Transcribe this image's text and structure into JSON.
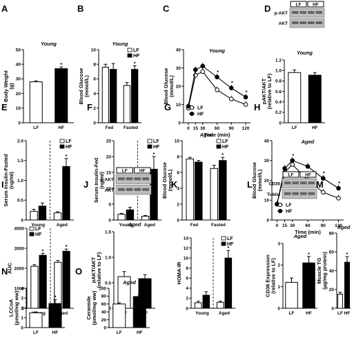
{
  "chart_data": [
    {
      "letter": "A",
      "type": "bar",
      "title": "Young",
      "ylabel": "Body Weight\n(g)",
      "ylim": [
        0,
        50
      ],
      "yticks": [
        0,
        10,
        20,
        30,
        40,
        50
      ],
      "categories": [
        "LF",
        "HF"
      ],
      "values": [
        28,
        37
      ],
      "errors": [
        0.6,
        1.2
      ],
      "sig": [
        false,
        true
      ],
      "colors": [
        "#ffffff",
        "#000000"
      ]
    },
    {
      "letter": "B",
      "type": "bar",
      "title": "Young",
      "ylabel": "Blood Glucose\n(mmol/L)",
      "ylim": [
        0,
        10
      ],
      "yticks": [
        0,
        2,
        4,
        6,
        8,
        10
      ],
      "categories": [
        "Fed",
        "Fasted"
      ],
      "series": [
        {
          "name": "LF",
          "values": [
            7.6,
            5.1
          ],
          "errors": [
            0.4,
            0.4
          ]
        },
        {
          "name": "HF",
          "values": [
            7.3,
            7.3
          ],
          "errors": [
            0.8,
            0.5
          ]
        }
      ],
      "sig": [
        false,
        true
      ],
      "legend": "top-right"
    },
    {
      "letter": "C",
      "type": "line",
      "title": "Young",
      "ylabel": "Blood Glucose\n(mmol/L)",
      "xlabel": "Time (min)",
      "ylim": [
        0,
        40
      ],
      "yticks": [
        0,
        10,
        20,
        30,
        40
      ],
      "x": [
        0,
        15,
        30,
        60,
        90,
        120
      ],
      "series": [
        {
          "name": "LF",
          "values": [
            8,
            26,
            28,
            18,
            13,
            10
          ],
          "marker": "open"
        },
        {
          "name": "HF",
          "values": [
            9,
            29,
            31,
            25,
            19,
            14
          ],
          "marker": "filled"
        }
      ],
      "sig_x": [
        60,
        90,
        120
      ],
      "legend": "bottom-left"
    },
    {
      "letter": "D",
      "type": "bar",
      "title": "Young",
      "ylabel": "pAKT/AKT\n(relative to LF)",
      "ylim": [
        0,
        1.2
      ],
      "yticks": [
        0,
        0.2,
        0.4,
        0.6,
        0.8,
        1.0,
        1.2
      ],
      "ytick_labels": [
        "0",
        "0.2",
        "0.4",
        "0.6",
        "0.8",
        "1.0",
        "1.2"
      ],
      "categories": [
        "LF",
        "HF"
      ],
      "values": [
        0.96,
        0.91
      ],
      "errors": [
        0.05,
        0.05
      ],
      "colors": [
        "#ffffff",
        "#000000"
      ],
      "blot_rows": [
        "p-AKT",
        "AKT"
      ],
      "blot_cols": [
        "LF",
        "HF"
      ]
    },
    {
      "letter": "E",
      "type": "bar",
      "ylabel": "Serum Insulin-Fasted\n(ng/ml)",
      "ylim": [
        0,
        2.0
      ],
      "yticks": [
        0,
        0.5,
        1.0,
        1.5,
        2.0
      ],
      "ytick_labels": [
        "0",
        "0.5",
        "1.0",
        "1.5",
        "2.0"
      ],
      "categories": [
        "Young",
        "Aged"
      ],
      "series": [
        {
          "name": "LF",
          "values": [
            0.22,
            0.18
          ],
          "errors": [
            0.05,
            0.03
          ]
        },
        {
          "name": "HF",
          "values": [
            0.35,
            1.35
          ],
          "errors": [
            0.08,
            0.2
          ]
        }
      ],
      "sig": [
        false,
        true
      ],
      "legend": "top-right"
    },
    {
      "letter": "F",
      "type": "bar",
      "ylabel": "Serum Insulin-Fed\n(ng/ml)",
      "ylim": [
        0,
        25
      ],
      "yticks": [
        0,
        5,
        10,
        15,
        20,
        25
      ],
      "categories": [
        "Young",
        "Aged"
      ],
      "series": [
        {
          "name": "LF",
          "values": [
            1.8,
            1.2
          ],
          "errors": [
            0.3,
            0.2
          ]
        },
        {
          "name": "HF",
          "values": [
            3.2,
            16
          ],
          "errors": [
            0.8,
            4
          ]
        }
      ],
      "sig": [
        false,
        true
      ],
      "legend": "top-right"
    },
    {
      "letter": "G",
      "type": "bar",
      "title": "Aged",
      "ylabel": "Blood Glucose\n(mmol/L)",
      "ylim": [
        0,
        10
      ],
      "yticks": [
        0,
        2,
        4,
        6,
        8,
        10
      ],
      "categories": [
        "Fed",
        "Fasted"
      ],
      "series": [
        {
          "name": "LF",
          "values": [
            7.7,
            6.5
          ],
          "errors": [
            0.2,
            0.4
          ]
        },
        {
          "name": "HF",
          "values": [
            7.3,
            7.5
          ],
          "errors": [
            0.2,
            0.4
          ]
        }
      ],
      "sig": [
        false,
        true
      ],
      "legend": "top-right"
    },
    {
      "letter": "H",
      "type": "line",
      "title": "Aged",
      "ylabel": "Blood Glucose\n(mmol/L)",
      "xlabel": "Time (min)",
      "ylim": [
        0,
        40
      ],
      "yticks": [
        0,
        10,
        20,
        30,
        40
      ],
      "x": [
        0,
        15,
        30,
        60,
        90,
        120
      ],
      "series": [
        {
          "name": "LF",
          "values": [
            8,
            24,
            28,
            20,
            14,
            11
          ],
          "marker": "open"
        },
        {
          "name": "HF",
          "values": [
            8,
            26,
            30,
            27,
            21,
            16
          ],
          "marker": "filled"
        }
      ],
      "sig_x": [
        30,
        90,
        120
      ],
      "legend": "bottom-left"
    },
    {
      "letter": "I",
      "type": "bar",
      "ylabel": "AUC",
      "ylim": [
        0,
        4000
      ],
      "yticks": [
        0,
        1000,
        2000,
        3000,
        4000
      ],
      "categories": [
        "Young",
        "Aged"
      ],
      "series": [
        {
          "name": "LF",
          "values": [
            2100,
            2300
          ],
          "errors": [
            80,
            90
          ]
        },
        {
          "name": "HF",
          "values": [
            2650,
            2850
          ],
          "errors": [
            100,
            110
          ]
        }
      ],
      "sig": [
        true,
        true
      ],
      "legend": "top-left"
    },
    {
      "letter": "J",
      "type": "bar",
      "title": "Aged",
      "ylabel": "pAKT/AKT\n(relative to LF)",
      "ylim": [
        0,
        1.5
      ],
      "yticks": [
        0,
        0.5,
        1.0,
        1.5
      ],
      "ytick_labels": [
        "0",
        "0.5",
        "1.0",
        "1.5"
      ],
      "categories": [
        "LF",
        "HF"
      ],
      "values": [
        0.62,
        0.58
      ],
      "errors": [
        0.1,
        0.08
      ],
      "colors": [
        "#ffffff",
        "#000000"
      ],
      "blot_rows": [
        "p-AKT",
        "AKT"
      ],
      "blot_cols": [
        "LF",
        "HF"
      ]
    },
    {
      "letter": "K",
      "type": "bar",
      "ylabel": "HOMA-IR",
      "ylim": [
        0,
        14
      ],
      "yticks": [
        0,
        2,
        4,
        6,
        8,
        10,
        12,
        14
      ],
      "categories": [
        "Young",
        "Aged"
      ],
      "series": [
        {
          "name": "LF",
          "values": [
            1.1,
            1.2
          ],
          "errors": [
            0.3,
            0.2
          ]
        },
        {
          "name": "HF",
          "values": [
            2.6,
            10
          ],
          "errors": [
            0.7,
            1.5
          ]
        }
      ],
      "sig": [
        false,
        true
      ],
      "legend": "top-right"
    },
    {
      "letter": "L",
      "type": "bar",
      "title": "Aged",
      "ylabel": "CD36 Expression\n(relative to LF)",
      "ylim": [
        0,
        3
      ],
      "yticks": [
        0,
        1,
        2,
        3
      ],
      "categories": [
        "LF",
        "HF"
      ],
      "values": [
        1.2,
        2.1
      ],
      "errors": [
        0.2,
        0.3
      ],
      "sig": [
        false,
        true
      ],
      "colors": [
        "#ffffff",
        "#000000"
      ],
      "blot_rows": [
        "CD36",
        "Tublin"
      ],
      "blot_cols": [
        "LF",
        "HF"
      ]
    },
    {
      "letter": "M",
      "type": "bar",
      "title": "Aged",
      "ylabel": "Muscle TG\n(µg/mg protein)",
      "ylim": [
        0,
        80
      ],
      "yticks": [
        0,
        20,
        40,
        60,
        80
      ],
      "categories": [
        "LF",
        "HF"
      ],
      "values": [
        15,
        49
      ],
      "errors": [
        2,
        6
      ],
      "sig": [
        false,
        true
      ],
      "colors": [
        "#ffffff",
        "#000000"
      ]
    },
    {
      "letter": "N",
      "type": "bar",
      "ylabel": "LCCoA\n(pmol/mg ww)",
      "ylim": [
        0,
        4
      ],
      "yticks": [
        0,
        1,
        2,
        3,
        4
      ],
      "categories": [
        "LF",
        "HF"
      ],
      "values": [
        1.5,
        2.45
      ],
      "errors": [
        0.1,
        0.4
      ],
      "sig": [
        false,
        true
      ],
      "colors": [
        "#ffffff",
        "#000000"
      ]
    },
    {
      "letter": "O",
      "type": "bar",
      "title": "Aged",
      "ylabel": "Ceramide\n(pmol/mg ww)",
      "ylim": [
        0,
        100
      ],
      "yticks": [
        0,
        20,
        40,
        60,
        80,
        100
      ],
      "categories": [
        "LF",
        "HF"
      ],
      "values": [
        60,
        79
      ],
      "errors": [
        3,
        4
      ],
      "sig": [
        false,
        true
      ],
      "colors": [
        "#ffffff",
        "#000000"
      ]
    }
  ]
}
